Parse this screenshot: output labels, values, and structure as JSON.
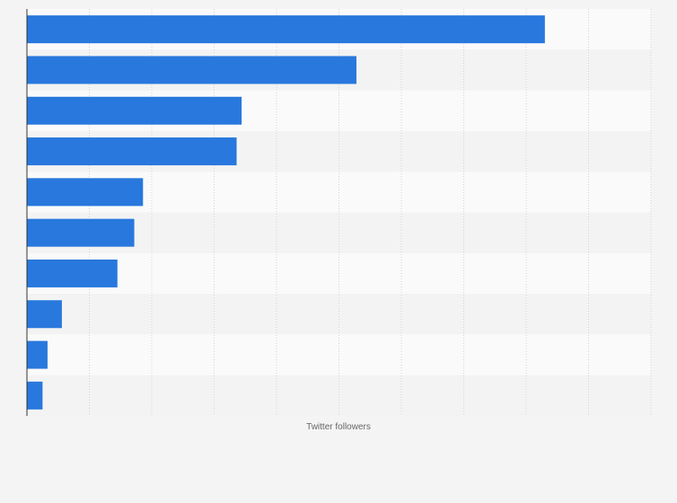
{
  "chart_data": {
    "type": "bar",
    "orientation": "horizontal",
    "title": "",
    "xlabel": "Twitter followers",
    "ylabel": "",
    "categories": [
      "",
      "",
      "",
      "",
      "",
      "",
      "",
      "",
      "",
      ""
    ],
    "values": [
      8300000,
      5280000,
      3440000,
      3360000,
      1860000,
      1720000,
      1450000,
      560000,
      330000,
      250000
    ],
    "xlim": [
      0,
      10000000
    ],
    "grid": true,
    "legend": "none",
    "colors": {
      "bar": "#2878dd",
      "band_light": "#fafafa",
      "band_dark": "#f3f3f3",
      "grid": "#d4d4d4",
      "axis": "#333333",
      "background": "#f4f4f4"
    }
  }
}
